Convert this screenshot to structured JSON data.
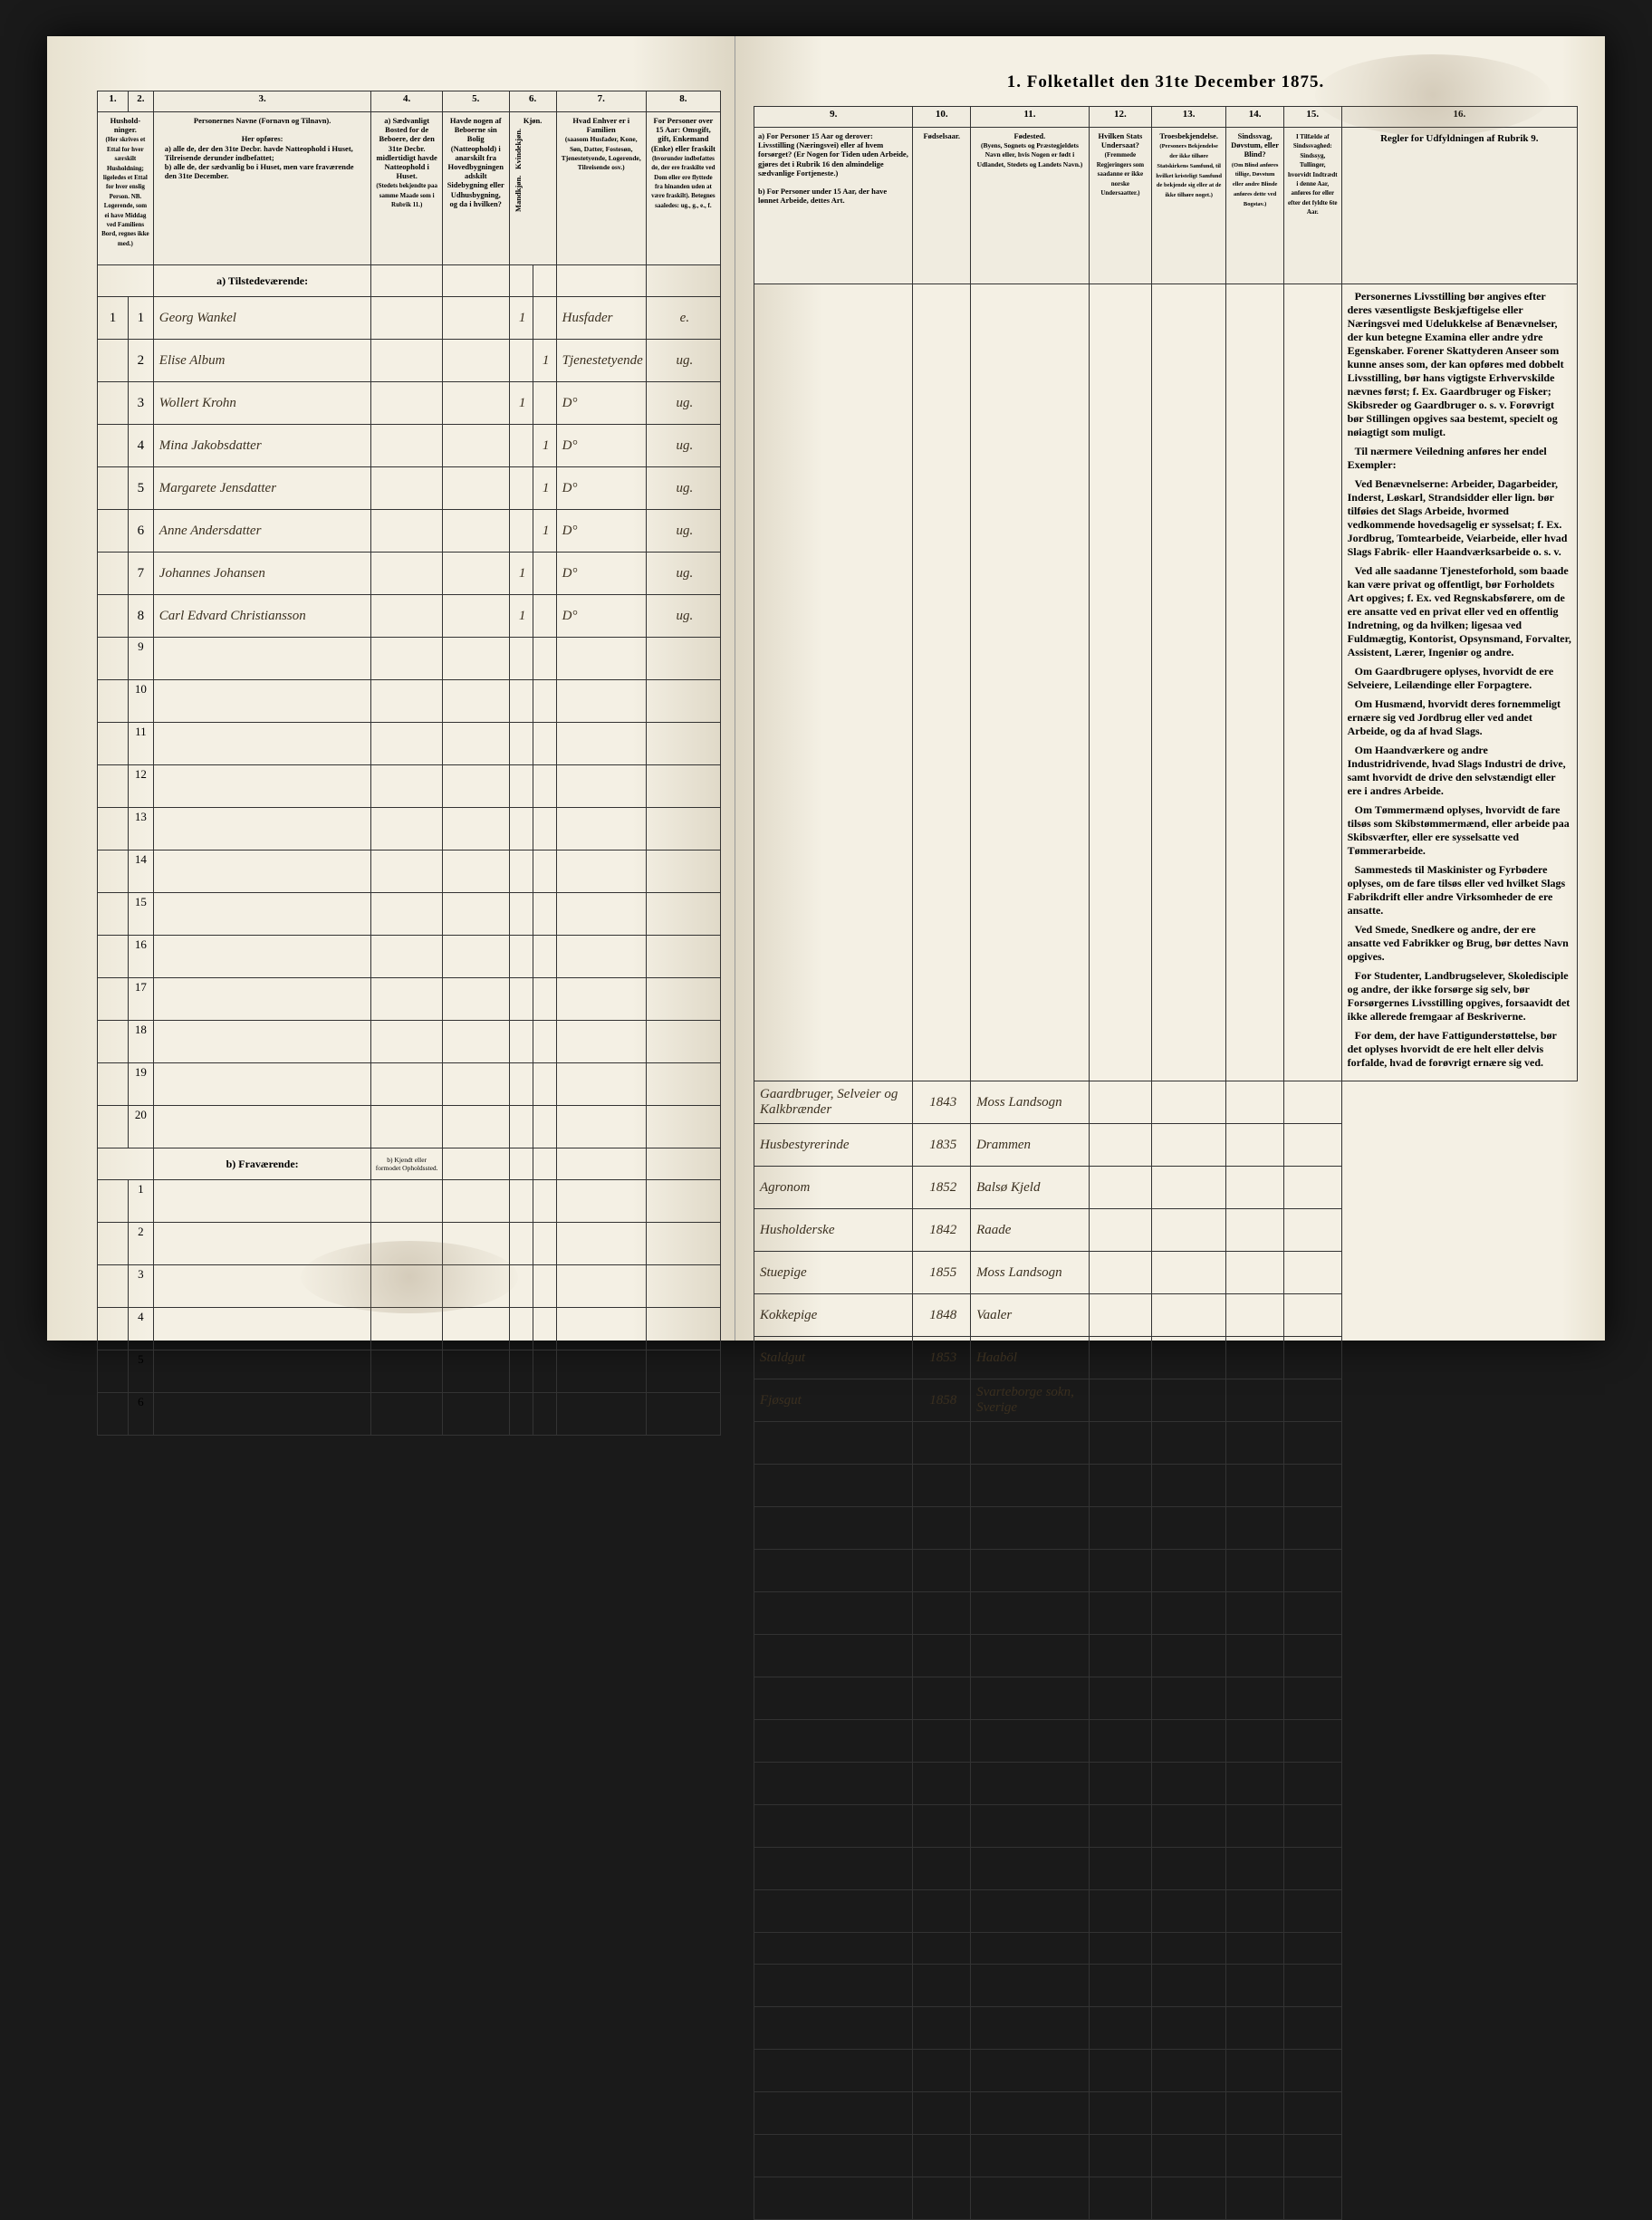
{
  "title": "1. Folketallet den 31te December 1875.",
  "left_cols": [
    "1.",
    "2.",
    "3.",
    "4.",
    "5.",
    "6.",
    "7.",
    "8."
  ],
  "right_cols": [
    "9.",
    "10.",
    "11.",
    "12.",
    "13.",
    "14.",
    "15.",
    "16."
  ],
  "headers_left": {
    "c1": "Hushold-ninger.",
    "c1_sub": "(Her skrives et Ettal for hver særskilt Husholdning; ligeledes et Ettal for hver enslig Person. NB. Logerende, som ei have Middag ved Familiens Bord, regnes ikke med.)",
    "c3": "Personernes Navne (Fornavn og Tilnavn).",
    "c3_sub_intro": "Her opføres:",
    "c3_sub_a": "a) alle de, der den 31te Decbr. havde Natteophold i Huset, Tilreisende derunder indbefattet;",
    "c3_sub_b": "b) alle de, der sædvanlig bo i Huset, men vare fraværende den 31te December.",
    "c4": "a) Sædvanligt Bosted for de Beboere, der den 31te Decbr. midlertidigt havde Natteophold i Huset.",
    "c4_sub": "(Stedets bekjendte paa samme Maade som i Rubrik 11.)",
    "c5": "Havde nogen af Beboerne sin Bolig (Natteophold) i anarskilt fra Hovedbygningen adskilt Sidebygning eller Udhusbygning, og da i hvilken?",
    "c6": "Kjøn.",
    "c6a": "Mandkjøn.",
    "c6b": "Kvindekjøn.",
    "c7": "Hvad Enhver er i Familien",
    "c7_sub": "(saasom Husfader, Kone, Søn, Datter, Fostesøn, Tjenestetyende, Logerende, Tilreisende osv.)",
    "c8": "For Personer over 15 Aar: Omsgift, gift, Enkemand (Enke) eller fraskilt",
    "c8_sub": "(hvorunder indbefattes de, der ere fraskilte ved Dom eller ere flyttede fra hinanden uden at være fraskilt). Betegnes saaledes: ug., g., e., f."
  },
  "headers_right": {
    "c9a": "a) For Personer 15 Aar og derover: Livsstilling (Næringsvei) eller af hvem forsørget? (Er Nogen for Tiden uden Arbeide, gjøres det i Rubrik 16 den almindelige sædvanlige Fortjeneste.)",
    "c9b": "b) For Personer under 15 Aar, der have lønnet Arbeide, dettes Art.",
    "c10": "Fødselsaar.",
    "c11": "Fødested.",
    "c11_sub": "(Byens, Sognets og Præstegjeldets Navn eller, hvis Nogen er født i Udlandet, Stedets og Landets Navn.)",
    "c12": "Hvilken Stats Undersaat?",
    "c12_sub": "(Fremmede Regjeringers som saadanne er ikke norske Undersaatter.)",
    "c13": "Troesbekjendelse.",
    "c13_sub": "(Personers Bekjendelse der ikke tilhøre Statskirkens Samfund, til hvilket kristeligt Samfund de bekjende sig eller at de ikke tilhøre noget.)",
    "c14": "Sindssvag, Døvstum, eller Blind?",
    "c14_sub": "(Om Blind anføres tillige, Døvstum eller andre Blinde anføres dette ved Bogstav.)",
    "c15": "I Tilfælde af Sindssvaghed: Sindssyg, Tullinger, hvorvidt Indtrædt i denne Aar, anføres for eller efter det fyldte 6te Aar.",
    "c16": "Regler for Udfyldningen af Rubrik 9."
  },
  "section_a": "a) Tilstedeværende:",
  "section_b": "b) Fraværende:",
  "section_b_col4": "b) Kjendt eller formodet Opholdssted.",
  "rows": [
    {
      "n1": "1",
      "n2": "1",
      "name": "Georg Wankel",
      "c6a": "1",
      "c6b": "",
      "c7": "Husfader",
      "c8": "e.",
      "c9": "Gaardbruger, Selveier og Kalkbrænder",
      "c10": "1843",
      "c11": "Moss Landsogn"
    },
    {
      "n1": "",
      "n2": "2",
      "name": "Elise Album",
      "c6a": "",
      "c6b": "1",
      "c7": "Tjenestetyende",
      "c8": "ug.",
      "c9": "Husbestyrerinde",
      "c10": "1835",
      "c11": "Drammen"
    },
    {
      "n1": "",
      "n2": "3",
      "name": "Wollert Krohn",
      "c6a": "1",
      "c6b": "",
      "c7": "D°",
      "c8": "ug.",
      "c9": "Agronom",
      "c10": "1852",
      "c11": "Balsø Kjeld"
    },
    {
      "n1": "",
      "n2": "4",
      "name": "Mina Jakobsdatter",
      "c6a": "",
      "c6b": "1",
      "c7": "D°",
      "c8": "ug.",
      "c9": "Husholderske",
      "c10": "1842",
      "c11": "Raade"
    },
    {
      "n1": "",
      "n2": "5",
      "name": "Margarete Jensdatter",
      "c6a": "",
      "c6b": "1",
      "c7": "D°",
      "c8": "ug.",
      "c9": "Stuepige",
      "c10": "1855",
      "c11": "Moss Landsogn"
    },
    {
      "n1": "",
      "n2": "6",
      "name": "Anne Andersdatter",
      "c6a": "",
      "c6b": "1",
      "c7": "D°",
      "c8": "ug.",
      "c9": "Kokkepige",
      "c10": "1848",
      "c11": "Vaaler"
    },
    {
      "n1": "",
      "n2": "7",
      "name": "Johannes Johansen",
      "c6a": "1",
      "c6b": "",
      "c7": "D°",
      "c8": "ug.",
      "c9": "Staldgut",
      "c10": "1853",
      "c11": "Haaböl"
    },
    {
      "n1": "",
      "n2": "8",
      "name": "Carl Edvard Christiansson",
      "c6a": "1",
      "c6b": "",
      "c7": "D°",
      "c8": "ug.",
      "c9": "Fjøsgut",
      "c10": "1858",
      "c11": "Svarteborge sokn, Sverige"
    }
  ],
  "empty_rows_a": [
    "9",
    "10",
    "11",
    "12",
    "13",
    "14",
    "15",
    "16",
    "17",
    "18",
    "19",
    "20"
  ],
  "empty_rows_b": [
    "1",
    "2",
    "3",
    "4",
    "5",
    "6"
  ],
  "rules_text": "Personernes Livsstilling bør angives efter deres væsentligste Beskjæftigelse eller Næringsvei med Udelukkelse af Benævnelser, der kun betegne Examina eller andre ydre Egenskaber. Forener Skattyderen Anseer som kunne anses som, der kan opføres med dobbelt Livsstilling, bør hans vigtigste Erhvervskilde nævnes først; f. Ex. Gaardbruger og Fisker; Skibsreder og Gaardbruger o. s. v. Forøvrigt bør Stillingen opgives saa bestemt, specielt og nøiagtigt som muligt.\n\nTil nærmere Veiledning anføres her endel Exempler:\n\nVed Benævnelserne: Arbeider, Dagarbeider, Inderst, Løskarl, Strandsidder eller lign. bør tilføies det Slags Arbeide, hvormed vedkommende hovedsagelig er sysselsat; f. Ex. Jordbrug, Tomtearbeide, Veiarbeide, eller hvad Slags Fabrik- eller Haandværksarbeide o. s. v.\n\nVed alle saadanne Tjenesteforhold, som baade kan være privat og offentligt, bør Forholdets Art opgives; f. Ex. ved Regnskabsførere, om de ere ansatte ved en privat eller ved en offentlig Indretning, og da hvilken; ligesaa ved Fuldmægtig, Kontorist, Opsynsmand, Forvalter, Assistent, Lærer, Ingeniør og andre.\n\nOm Gaardbrugere oplyses, hvorvidt de ere Selveiere, Leilændinge eller Forpagtere.\n\nOm Husmænd, hvorvidt deres fornemmeligt ernære sig ved Jordbrug eller ved andet Arbeide, og da af hvad Slags.\n\nOm Haandværkere og andre Industridrivende, hvad Slags Industri de drive, samt hvorvidt de drive den selvstændigt eller ere i andres Arbeide.\n\nOm Tømmermænd oplyses, hvorvidt de fare tilsøs som Skibstømmermænd, eller arbeide paa Skibsværfter, eller ere sysselsatte ved Tømmerarbeide.\n\nSammesteds til Maskinister og Fyrbødere oplyses, om de fare tilsøs eller ved hvilket Slags Fabrikdrift eller andre Virksomheder de ere ansatte.\n\nVed Smede, Snedkere og andre, der ere ansatte ved Fabrikker og Brug, bør dettes Navn opgives.\n\nFor Studenter, Landbrugselever, Skoledisciple og andre, der ikke forsørge sig selv, bør Forsørgernes Livsstilling opgives, forsaavidt det ikke allerede fremgaar af Beskriverne.\n\nFor dem, der have Fattigunderstøttelse, bør det oplyses hvorvidt de ere helt eller delvis forfalde, hvad de forøvrigt ernære sig ved."
}
